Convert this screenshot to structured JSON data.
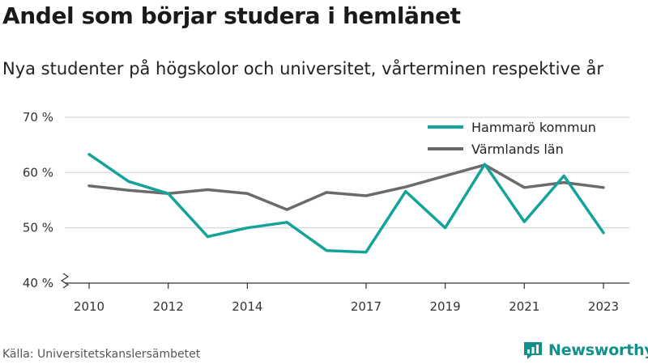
{
  "header": {
    "title": "Andel som börjar studera i hemlänet",
    "subtitle": "Nya studenter på högskolor och universitet, vårterminen respektive år"
  },
  "footer": {
    "source": "Källa: Universitetskanslersämbetet",
    "brand": "Newsworthy",
    "brand_icon": "newsworthy-logo-icon"
  },
  "colors": {
    "hammaro": "#14a39a",
    "varmland": "#6b6b6b",
    "grid": "#dddddd",
    "axis": "#333333",
    "brand": "#12908c"
  },
  "chart_data": {
    "type": "line",
    "x": [
      2010,
      2011,
      2012,
      2013,
      2014,
      2015,
      2016,
      2017,
      2018,
      2019,
      2020,
      2021,
      2022,
      2023
    ],
    "xticks": [
      2010,
      2012,
      2014,
      2017,
      2019,
      2021,
      2023
    ],
    "xtick_labels": [
      "2010",
      "2012",
      "2014",
      "2017",
      "2019",
      "2021",
      "2023"
    ],
    "xlim": [
      2010,
      2023
    ],
    "ylim": [
      40,
      70
    ],
    "yticks": [
      40,
      50,
      60,
      70
    ],
    "ytick_labels": [
      "40 %",
      "50 %",
      "60 %",
      "70 %"
    ],
    "axis_break": true,
    "grid": true,
    "legend_position": "top-right",
    "series": [
      {
        "name": "Hammarö kommun",
        "color": "#14a39a",
        "values": [
          63.3,
          58.4,
          56.2,
          48.4,
          50.0,
          51.0,
          45.9,
          45.6,
          56.6,
          50.0,
          61.5,
          51.1,
          59.4,
          49.1
        ]
      },
      {
        "name": "Värmlands län",
        "color": "#6b6b6b",
        "values": [
          57.6,
          56.8,
          56.2,
          56.9,
          56.2,
          53.3,
          56.4,
          55.8,
          57.4,
          59.4,
          61.4,
          57.3,
          58.2,
          57.3
        ]
      }
    ]
  }
}
